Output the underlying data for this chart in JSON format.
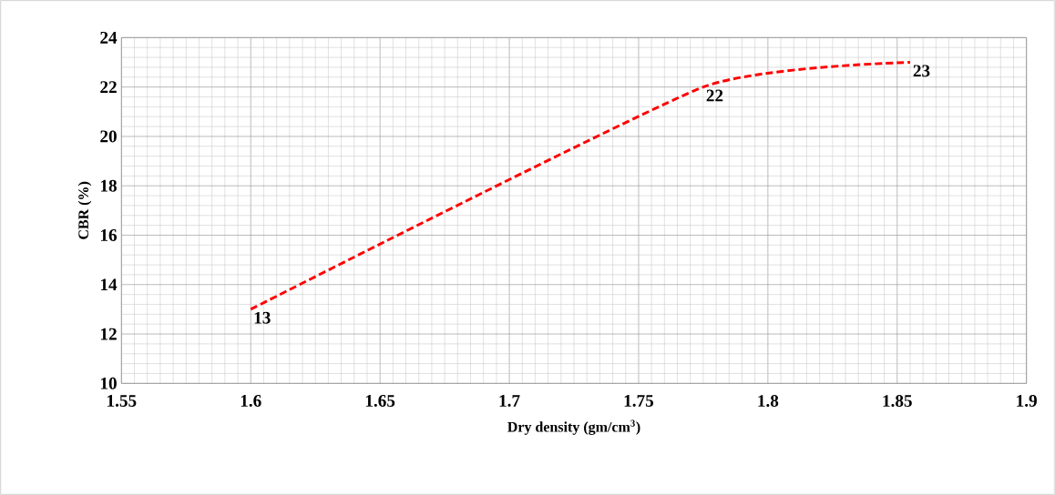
{
  "chart_data": {
    "type": "line",
    "xlabel": "Dry density (gm/cm$^{3}$)",
    "ylabel": "CBR (%)",
    "x": [
      1.6,
      1.775,
      1.855
    ],
    "series": [
      {
        "color": "#ff0000",
        "values": [
          13,
          22,
          23
        ]
      }
    ],
    "xlim": [
      1.55,
      1.9
    ],
    "xticks": [
      1.55,
      1.6,
      1.65,
      1.7,
      1.75,
      1.8,
      1.85,
      1.9
    ],
    "ylim": [
      10,
      24
    ],
    "yticks": [
      10,
      12,
      14,
      16,
      18,
      20,
      22,
      24
    ],
    "grid": true,
    "marker": "none",
    "line_style": "dashed",
    "data_labels": true
  }
}
